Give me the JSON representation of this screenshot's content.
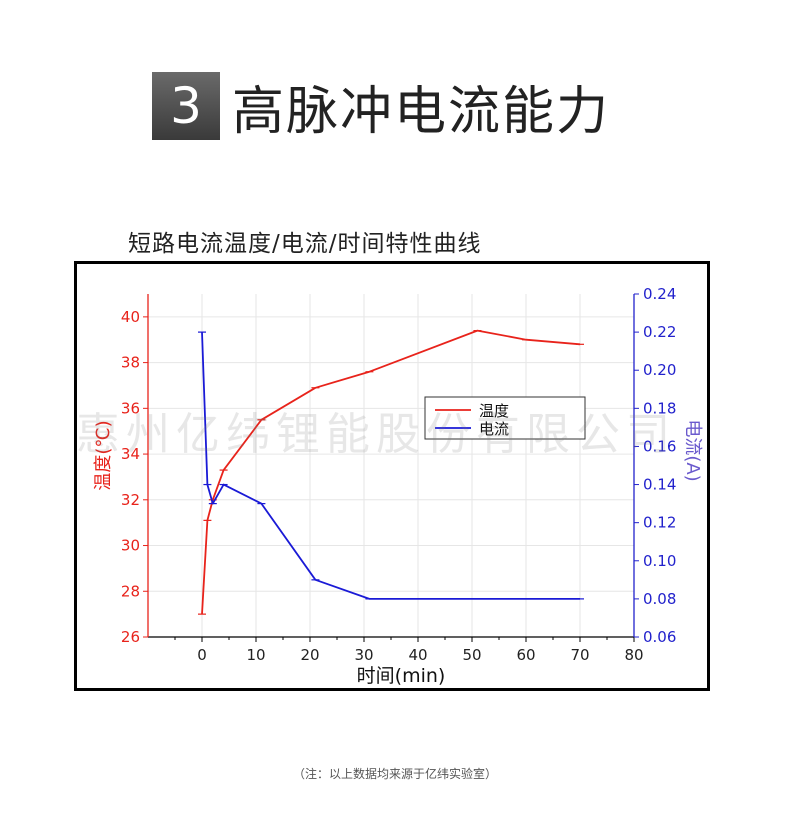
{
  "header": {
    "number": "3",
    "title": "高脉冲电流能力"
  },
  "chart_title": "短路电流温度/电流/时间特性曲线",
  "watermark": "惠州亿纬锂能股份有限公司",
  "footnote": "（注：以上数据均来源于亿纬实验室）",
  "colors": {
    "temperature": "#e8231b",
    "current": "#1a1ad6",
    "left_axis": "#e8231b",
    "right_axis": "#2222cc"
  },
  "chart_data": {
    "type": "line",
    "xlabel": "时间(min)",
    "xlim": [
      -10,
      80
    ],
    "xticks": [
      0,
      10,
      20,
      30,
      40,
      50,
      60,
      70,
      80
    ],
    "y_left": {
      "label": "温度(℃)",
      "lim": [
        26,
        41
      ],
      "ticks": [
        26,
        28,
        30,
        32,
        34,
        36,
        38,
        40
      ],
      "tick_labels": [
        "26",
        "28",
        "30",
        "32",
        "34",
        "36",
        "38",
        "40"
      ]
    },
    "y_right": {
      "label": "电流(A)",
      "lim": [
        0.06,
        0.24
      ],
      "ticks": [
        0.06,
        0.08,
        0.1,
        0.12,
        0.14,
        0.16,
        0.18,
        0.2,
        0.22,
        0.24
      ],
      "tick_labels": [
        "0.06",
        "0.08",
        "0.10",
        "0.12",
        "0.14",
        "0.16",
        "0.18",
        "0.20",
        "0.22",
        "0.24"
      ]
    },
    "legend": {
      "position": "center-right"
    },
    "series": [
      {
        "name": "温度",
        "axis": "left",
        "color": "#e8231b",
        "x": [
          0,
          1,
          2,
          4,
          11,
          21,
          31,
          51,
          60,
          70
        ],
        "y": [
          27.0,
          31.1,
          32.0,
          33.3,
          35.5,
          36.9,
          37.6,
          39.4,
          39.0,
          38.8
        ]
      },
      {
        "name": "电流",
        "axis": "right",
        "color": "#1a1ad6",
        "x": [
          0,
          1,
          2,
          4,
          11,
          21,
          31,
          51,
          60,
          70
        ],
        "y": [
          0.22,
          0.14,
          0.13,
          0.14,
          0.13,
          0.09,
          0.08,
          0.08,
          0.08,
          0.08
        ]
      }
    ]
  }
}
